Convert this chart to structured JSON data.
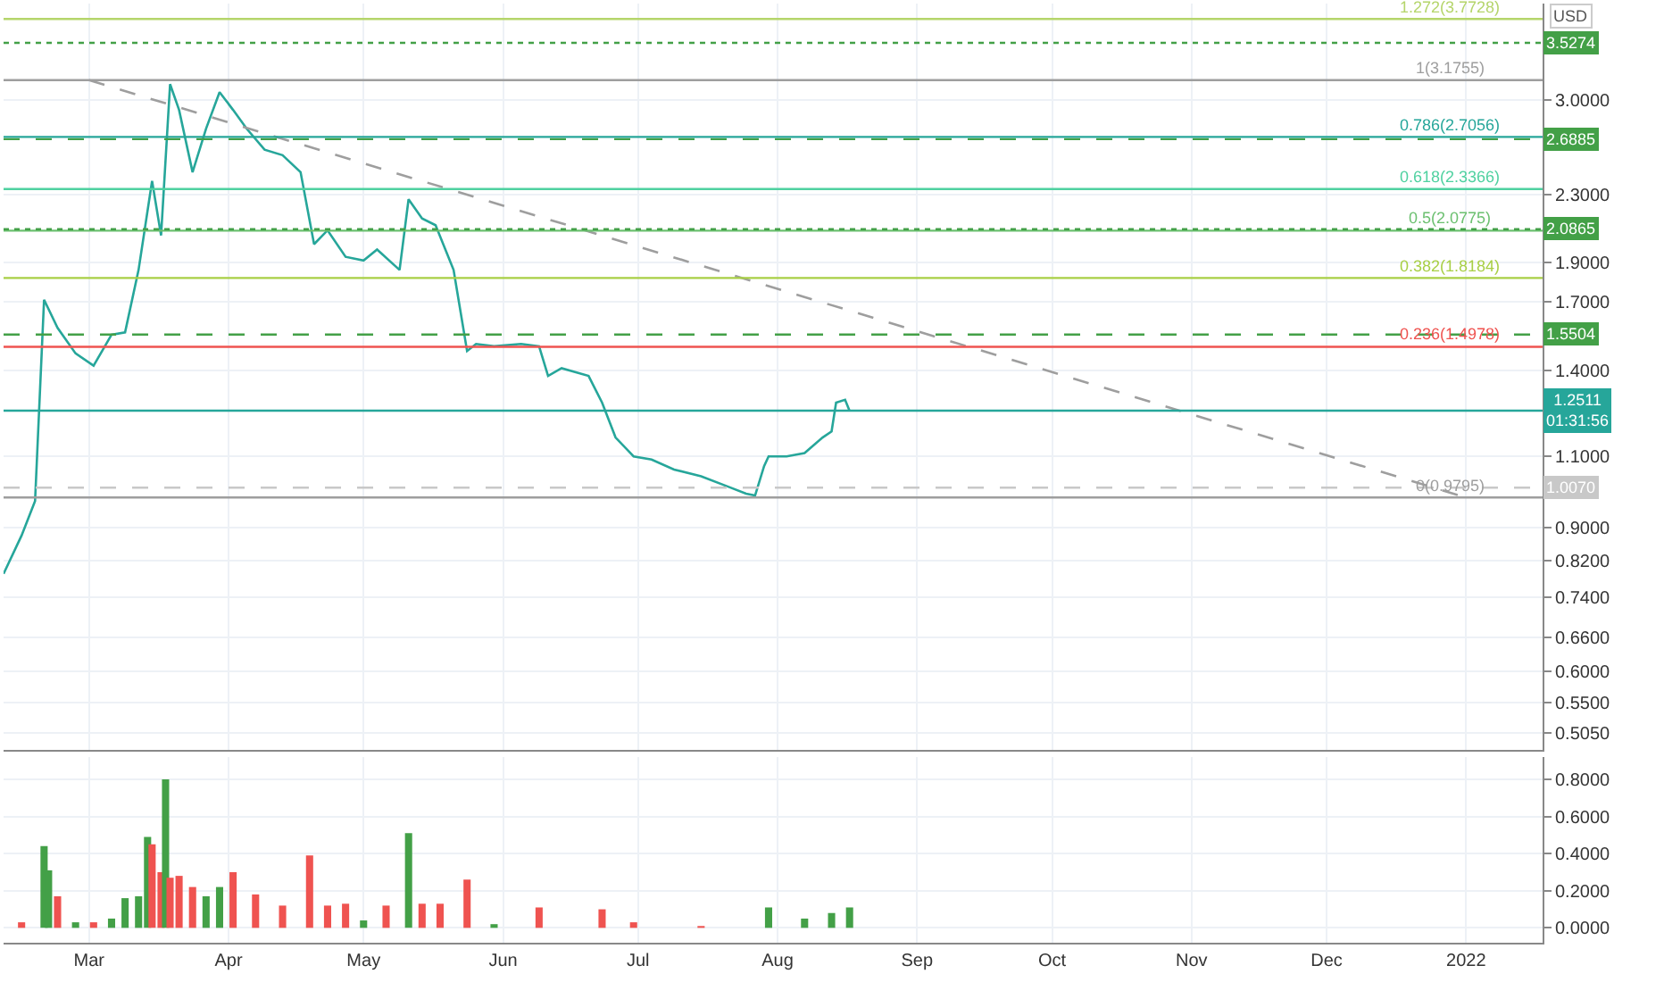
{
  "chart_data": [
    {
      "type": "line",
      "tick_labels": "y",
      "log": true,
      "grid": true,
      "xlim": [
        "2021-02-10",
        "2022-01-18"
      ],
      "xticks": [
        {
          "value": "2021-03-01",
          "label": null
        },
        {
          "value": "2021-04-01",
          "label": null
        },
        {
          "value": "2021-05-01",
          "label": null
        },
        {
          "value": "2021-06-01",
          "label": null
        },
        {
          "value": "2021-07-01",
          "label": null
        },
        {
          "value": "2021-08-01",
          "label": null
        },
        {
          "value": "2021-09-01",
          "label": null
        },
        {
          "value": "2021-10-01",
          "label": null
        },
        {
          "value": "2021-11-01",
          "label": null
        },
        {
          "value": "2021-12-01",
          "label": null
        },
        {
          "value": "2022-01-01",
          "label": null
        }
      ],
      "ylim": [
        0.481,
        3.94
      ],
      "yticks": [
        {
          "value": 0.505,
          "label": "0.5050"
        },
        {
          "value": 0.55,
          "label": "0.5500"
        },
        {
          "value": 0.6,
          "label": "0.6000"
        },
        {
          "value": 0.66,
          "label": "0.6600"
        },
        {
          "value": 0.74,
          "label": "0.7400"
        },
        {
          "value": 0.82,
          "label": "0.8200"
        },
        {
          "value": 0.9,
          "label": "0.9000"
        },
        {
          "value": 1.1,
          "label": "1.1000"
        },
        {
          "value": 1.4,
          "label": "1.4000"
        },
        {
          "value": 1.7,
          "label": "1.7000"
        },
        {
          "value": 1.9,
          "label": "1.9000"
        },
        {
          "value": 2.3,
          "label": "2.3000"
        },
        {
          "value": 3.0,
          "label": "3.0000"
        }
      ],
      "series": [
        {
          "color": "#26a69a",
          "x": [
            "2021-02-10",
            "2021-02-14",
            "2021-02-17",
            "2021-02-19",
            "2021-02-22",
            "2021-02-26",
            "2021-03-02",
            "2021-03-06",
            "2021-03-09",
            "2021-03-12",
            "2021-03-15",
            "2021-03-17",
            "2021-03-19",
            "2021-03-21",
            "2021-03-24",
            "2021-03-27",
            "2021-03-30",
            "2021-04-02",
            "2021-04-05",
            "2021-04-09",
            "2021-04-13",
            "2021-04-17",
            "2021-04-20",
            "2021-04-23",
            "2021-04-27",
            "2021-05-01",
            "2021-05-04",
            "2021-05-09",
            "2021-05-11",
            "2021-05-14",
            "2021-05-17",
            "2021-05-21",
            "2021-05-24",
            "2021-05-26",
            "2021-05-30",
            "2021-06-05",
            "2021-06-09",
            "2021-06-11",
            "2021-06-14",
            "2021-06-20",
            "2021-06-23",
            "2021-06-26",
            "2021-06-30",
            "2021-07-04",
            "2021-07-09",
            "2021-07-15",
            "2021-07-21",
            "2021-07-25",
            "2021-07-27",
            "2021-07-29",
            "2021-07-30",
            "2021-08-03",
            "2021-08-07",
            "2021-08-11",
            "2021-08-13",
            "2021-08-14",
            "2021-08-16",
            "2021-08-17"
          ],
          "values": [
            0.79,
            0.88,
            0.97,
            1.71,
            1.58,
            1.47,
            1.42,
            1.55,
            1.56,
            1.86,
            2.39,
            2.05,
            3.14,
            2.92,
            2.45,
            2.77,
            3.07,
            2.92,
            2.77,
            2.61,
            2.57,
            2.45,
            2.0,
            2.08,
            1.93,
            1.91,
            1.97,
            1.86,
            2.27,
            2.15,
            2.11,
            1.86,
            1.48,
            1.51,
            1.5,
            1.51,
            1.5,
            1.38,
            1.41,
            1.38,
            1.28,
            1.16,
            1.1,
            1.09,
            1.06,
            1.04,
            1.01,
            0.99,
            0.985,
            1.07,
            1.1,
            1.1,
            1.11,
            1.16,
            1.18,
            1.28,
            1.29,
            1.25
          ]
        },
        {
          "type": "line",
          "color": "#9e9e9e",
          "line_style": "dashed",
          "x": [
            "2021-03-01",
            "2022-01-01"
          ],
          "values": [
            3.1755,
            0.9795
          ]
        }
      ],
      "ref_lines": [
        {
          "axis": "y",
          "value": 3.7728,
          "label": "1.272(3.7728)",
          "color": "#b5d56b"
        },
        {
          "axis": "y",
          "value": 3.1755,
          "label": "1(3.1755)",
          "color": "#9e9e9e"
        },
        {
          "axis": "y",
          "value": 2.7056,
          "label": "0.786(2.7056)",
          "color": "#26a69a"
        },
        {
          "axis": "y",
          "value": 2.3366,
          "label": "0.618(2.3366)",
          "color": "#4fd1a0"
        },
        {
          "axis": "y",
          "value": 2.0775,
          "label": "0.5(2.0775)",
          "color": "#6cc070"
        },
        {
          "axis": "y",
          "value": 1.8184,
          "label": "0.382(1.8184)",
          "color": "#a8cf45"
        },
        {
          "axis": "y",
          "value": 1.4978,
          "label": "0.236(1.4978)",
          "color": "#ef5350"
        },
        {
          "axis": "y",
          "value": 0.9795,
          "label": "0(0.9795)",
          "color": "#9e9e9e"
        },
        {
          "axis": "y",
          "value": 3.5274,
          "label": "3.5274",
          "color": "#43a047",
          "line_style": "dotted"
        },
        {
          "axis": "y",
          "value": 2.6885,
          "label": "2.6885",
          "color": "#43a047",
          "line_style": "dashed"
        },
        {
          "axis": "y",
          "value": 2.0865,
          "label": "2.0865",
          "color": "#43a047",
          "line_style": "dotted"
        },
        {
          "axis": "y",
          "value": 1.5504,
          "label": "1.5504",
          "color": "#43a047",
          "line_style": "dashed"
        },
        {
          "axis": "y",
          "value": 1.2511,
          "label": "1.2511\n01:31:56",
          "color": "#26a69a",
          "line_style": "solid"
        },
        {
          "axis": "y",
          "value": 1.007,
          "label": "1.0070",
          "color": "#c8c8c8",
          "line_style": "dashed"
        }
      ],
      "annotations": [
        "USD"
      ]
    },
    {
      "type": "bar",
      "grid": true,
      "xlim": [
        "2021-02-10",
        "2022-01-18"
      ],
      "xticks": [
        {
          "value": "2021-03-01",
          "label": "Mar"
        },
        {
          "value": "2021-04-01",
          "label": "Apr"
        },
        {
          "value": "2021-05-01",
          "label": "May"
        },
        {
          "value": "2021-06-01",
          "label": "Jun"
        },
        {
          "value": "2021-07-01",
          "label": "Jul"
        },
        {
          "value": "2021-08-01",
          "label": "Aug"
        },
        {
          "value": "2021-09-01",
          "label": "Sep"
        },
        {
          "value": "2021-10-01",
          "label": "Oct"
        },
        {
          "value": "2021-11-01",
          "label": "Nov"
        },
        {
          "value": "2021-12-01",
          "label": "Dec"
        },
        {
          "value": "2022-01-01",
          "label": "2022"
        }
      ],
      "ylim": [
        -0.08,
        0.92
      ],
      "yticks": [
        {
          "value": 0,
          "label": "0.0000"
        },
        {
          "value": 0.2,
          "label": "0.2000"
        },
        {
          "value": 0.4,
          "label": "0.4000"
        },
        {
          "value": 0.6,
          "label": "0.6000"
        },
        {
          "value": 0.8,
          "label": "0.8000"
        }
      ],
      "x": [
        "2021-02-14",
        "2021-02-19",
        "2021-02-20",
        "2021-02-22",
        "2021-02-26",
        "2021-03-02",
        "2021-03-06",
        "2021-03-09",
        "2021-03-12",
        "2021-03-14",
        "2021-03-15",
        "2021-03-17",
        "2021-03-18",
        "2021-03-19",
        "2021-03-21",
        "2021-03-24",
        "2021-03-27",
        "2021-03-30",
        "2021-04-02",
        "2021-04-07",
        "2021-04-13",
        "2021-04-19",
        "2021-04-23",
        "2021-04-27",
        "2021-05-01",
        "2021-05-06",
        "2021-05-11",
        "2021-05-14",
        "2021-05-18",
        "2021-05-24",
        "2021-05-30",
        "2021-06-09",
        "2021-06-23",
        "2021-06-30",
        "2021-07-15",
        "2021-07-30",
        "2021-08-07",
        "2021-08-13",
        "2021-08-17"
      ],
      "values": [
        0.03,
        0.44,
        0.31,
        0.17,
        0.03,
        0.03,
        0.05,
        0.16,
        0.17,
        0.49,
        0.45,
        0.3,
        0.8,
        0.27,
        0.28,
        0.22,
        0.17,
        0.22,
        0.3,
        0.18,
        0.12,
        0.39,
        0.12,
        0.13,
        0.04,
        0.12,
        0.51,
        0.13,
        0.13,
        0.26,
        0.02,
        0.11,
        0.1,
        0.03,
        0.01,
        0.11,
        0.05,
        0.08,
        0.11
      ],
      "colors": [
        "#ef5350",
        "#43a047",
        "#43a047",
        "#ef5350",
        "#43a047",
        "#ef5350",
        "#43a047",
        "#43a047",
        "#43a047",
        "#43a047",
        "#ef5350",
        "#ef5350",
        "#43a047",
        "#ef5350",
        "#ef5350",
        "#ef5350",
        "#43a047",
        "#43a047",
        "#ef5350",
        "#ef5350",
        "#ef5350",
        "#ef5350",
        "#ef5350",
        "#ef5350",
        "#43a047",
        "#ef5350",
        "#43a047",
        "#ef5350",
        "#ef5350",
        "#ef5350",
        "#43a047",
        "#ef5350",
        "#ef5350",
        "#ef5350",
        "#ef5350",
        "#43a047",
        "#43a047",
        "#43a047",
        "#43a047"
      ]
    }
  ]
}
